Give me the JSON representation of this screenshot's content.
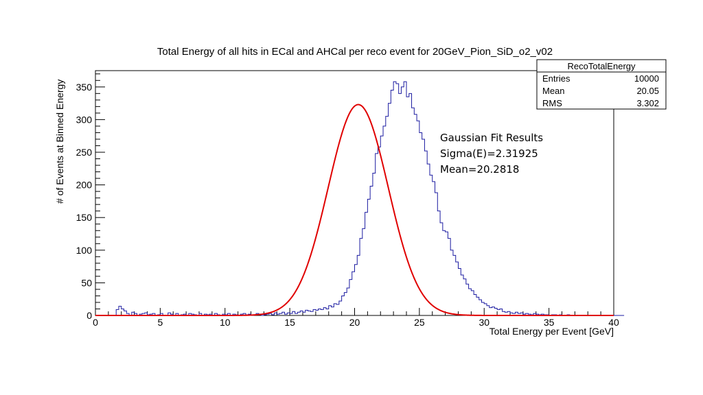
{
  "chart_data": {
    "type": "histogram",
    "title": "Total Energy of all hits in ECal and AHCal per reco event for 20GeV_Pion_SiD_o2_v02",
    "xlabel": "Total Energy per Event [GeV]",
    "ylabel": "# of Events at Binned Energy",
    "xlim": [
      0,
      40
    ],
    "ylim": [
      0,
      375
    ],
    "x_ticks": [
      0,
      5,
      10,
      15,
      20,
      25,
      30,
      35,
      40
    ],
    "y_ticks": [
      0,
      50,
      100,
      150,
      200,
      250,
      300,
      350
    ],
    "bin_width": 0.2,
    "bin_start": 0,
    "histogram_color": "#1a1aa0",
    "fit_color": "#e00000",
    "histogram_counts": [
      0,
      0,
      0,
      0,
      0,
      0,
      0,
      0,
      9,
      14,
      10,
      7,
      3,
      0,
      5,
      3,
      0,
      2,
      3,
      4,
      1,
      2,
      3,
      0,
      1,
      3,
      0,
      0,
      4,
      2,
      0,
      3,
      0,
      1,
      2,
      0,
      3,
      2,
      1,
      0,
      3,
      0,
      2,
      1,
      2,
      0,
      3,
      1,
      0,
      2,
      1,
      3,
      0,
      2,
      1,
      0,
      2,
      3,
      1,
      2,
      0,
      1,
      3,
      2,
      0,
      1,
      2,
      3,
      1,
      4,
      2,
      3,
      5,
      2,
      4,
      3,
      6,
      3,
      5,
      7,
      5,
      8,
      7,
      6,
      9,
      8,
      10,
      9,
      12,
      10,
      15,
      13,
      18,
      17,
      22,
      30,
      35,
      42,
      55,
      67,
      78,
      92,
      118,
      133,
      158,
      178,
      198,
      218,
      248,
      258,
      275,
      290,
      305,
      325,
      345,
      358,
      355,
      340,
      350,
      358,
      335,
      340,
      318,
      308,
      298,
      280,
      270,
      252,
      232,
      215,
      205,
      188,
      160,
      142,
      130,
      128,
      118,
      100,
      92,
      82,
      72,
      62,
      56,
      48,
      41,
      38,
      32,
      28,
      24,
      20,
      18,
      15,
      12,
      13,
      11,
      9,
      10,
      6,
      5,
      6,
      4,
      3,
      5,
      3,
      4,
      2,
      3,
      2,
      1,
      3,
      2,
      1,
      2,
      1,
      1,
      0,
      1,
      1,
      0,
      1,
      0,
      0,
      1,
      0,
      0,
      0,
      0,
      0,
      0,
      0,
      0,
      0,
      0,
      0,
      0,
      0,
      0,
      0,
      0,
      0,
      0,
      0,
      0,
      0
    ],
    "fit": {
      "type": "gaussian",
      "amplitude": 323,
      "mean": 20.2818,
      "sigma": 2.31925
    }
  },
  "stats_box": {
    "title": "RecoTotalEnergy",
    "rows": [
      {
        "label": "Entries",
        "value": "10000"
      },
      {
        "label": "Mean",
        "value": "20.05"
      },
      {
        "label": "RMS",
        "value": "3.302"
      }
    ]
  },
  "fit_note": {
    "line1": "Gaussian Fit Results",
    "line2": "Sigma(E)=2.31925",
    "line3": "Mean=20.2818"
  }
}
